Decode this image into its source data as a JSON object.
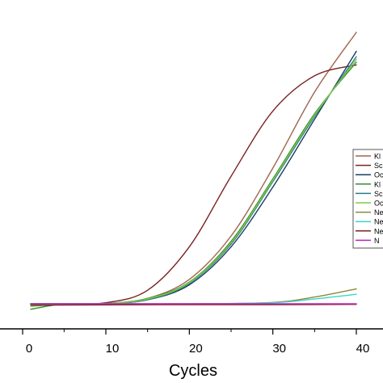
{
  "chart_data": {
    "type": "line",
    "title": "",
    "xlabel": "Cycles",
    "ylabel": "",
    "xlim": [
      0,
      42.5
    ],
    "ylim": [
      -0.3,
      10
    ],
    "x_ticks": [
      0,
      10,
      20,
      30,
      40
    ],
    "grid": false,
    "legend_position": "right",
    "legend_labels": [
      "Kl",
      "Sc",
      "Oc",
      "Kl",
      "Sc",
      "Oc",
      "Ne",
      "Ne",
      "Ne",
      "N"
    ],
    "series": [
      {
        "color": "#a0644e",
        "x": [
          1,
          5,
          10,
          15,
          20,
          25,
          30,
          35,
          40
        ],
        "y": [
          0,
          0,
          0.01,
          0.2,
          0.9,
          2.5,
          5.0,
          7.8,
          10.0
        ]
      },
      {
        "color": "#7a2222",
        "x": [
          1,
          5,
          10,
          15,
          20,
          25,
          30,
          35,
          40
        ],
        "y": [
          0,
          0.01,
          0.04,
          0.5,
          2.1,
          4.7,
          7.1,
          8.4,
          8.8
        ]
      },
      {
        "color": "#1c3c64",
        "x": [
          1,
          5,
          10,
          15,
          20,
          25,
          30,
          35,
          40
        ],
        "y": [
          0,
          0,
          0.01,
          0.15,
          0.7,
          2.1,
          4.3,
          6.8,
          9.3
        ]
      },
      {
        "color": "#3a8a3a",
        "x": [
          1,
          5,
          10,
          15,
          20,
          25,
          30,
          35,
          40
        ],
        "y": [
          -0.2,
          0,
          0.01,
          0.2,
          0.8,
          2.3,
          4.6,
          7.0,
          8.9
        ]
      },
      {
        "color": "#2b7b8c",
        "x": [
          1,
          5,
          10,
          15,
          20,
          25,
          30,
          35,
          40
        ],
        "y": [
          0,
          0,
          0.01,
          0.15,
          0.75,
          2.2,
          4.5,
          6.9,
          9.1
        ]
      },
      {
        "color": "#7fcf3f",
        "x": [
          1,
          5,
          10,
          15,
          20,
          25,
          30,
          35,
          40
        ],
        "y": [
          -0.1,
          0,
          0.01,
          0.18,
          0.78,
          2.25,
          4.55,
          6.95,
          9.0
        ]
      },
      {
        "color": "#8a8a3a",
        "x": [
          1,
          5,
          10,
          20,
          30,
          35,
          40
        ],
        "y": [
          0,
          0,
          0,
          0,
          0.05,
          0.25,
          0.55
        ]
      },
      {
        "color": "#3ad6c8",
        "x": [
          1,
          5,
          10,
          20,
          30,
          35,
          40
        ],
        "y": [
          0,
          0,
          0,
          0,
          0.04,
          0.18,
          0.35
        ]
      },
      {
        "color": "#7a2222",
        "x": [
          1,
          10,
          20,
          30,
          40
        ],
        "y": [
          -0.05,
          -0.04,
          -0.03,
          -0.03,
          -0.02
        ]
      },
      {
        "color": "#c020c0",
        "x": [
          1,
          10,
          20,
          30,
          40
        ],
        "y": [
          0,
          0,
          0,
          0,
          0
        ]
      }
    ]
  }
}
